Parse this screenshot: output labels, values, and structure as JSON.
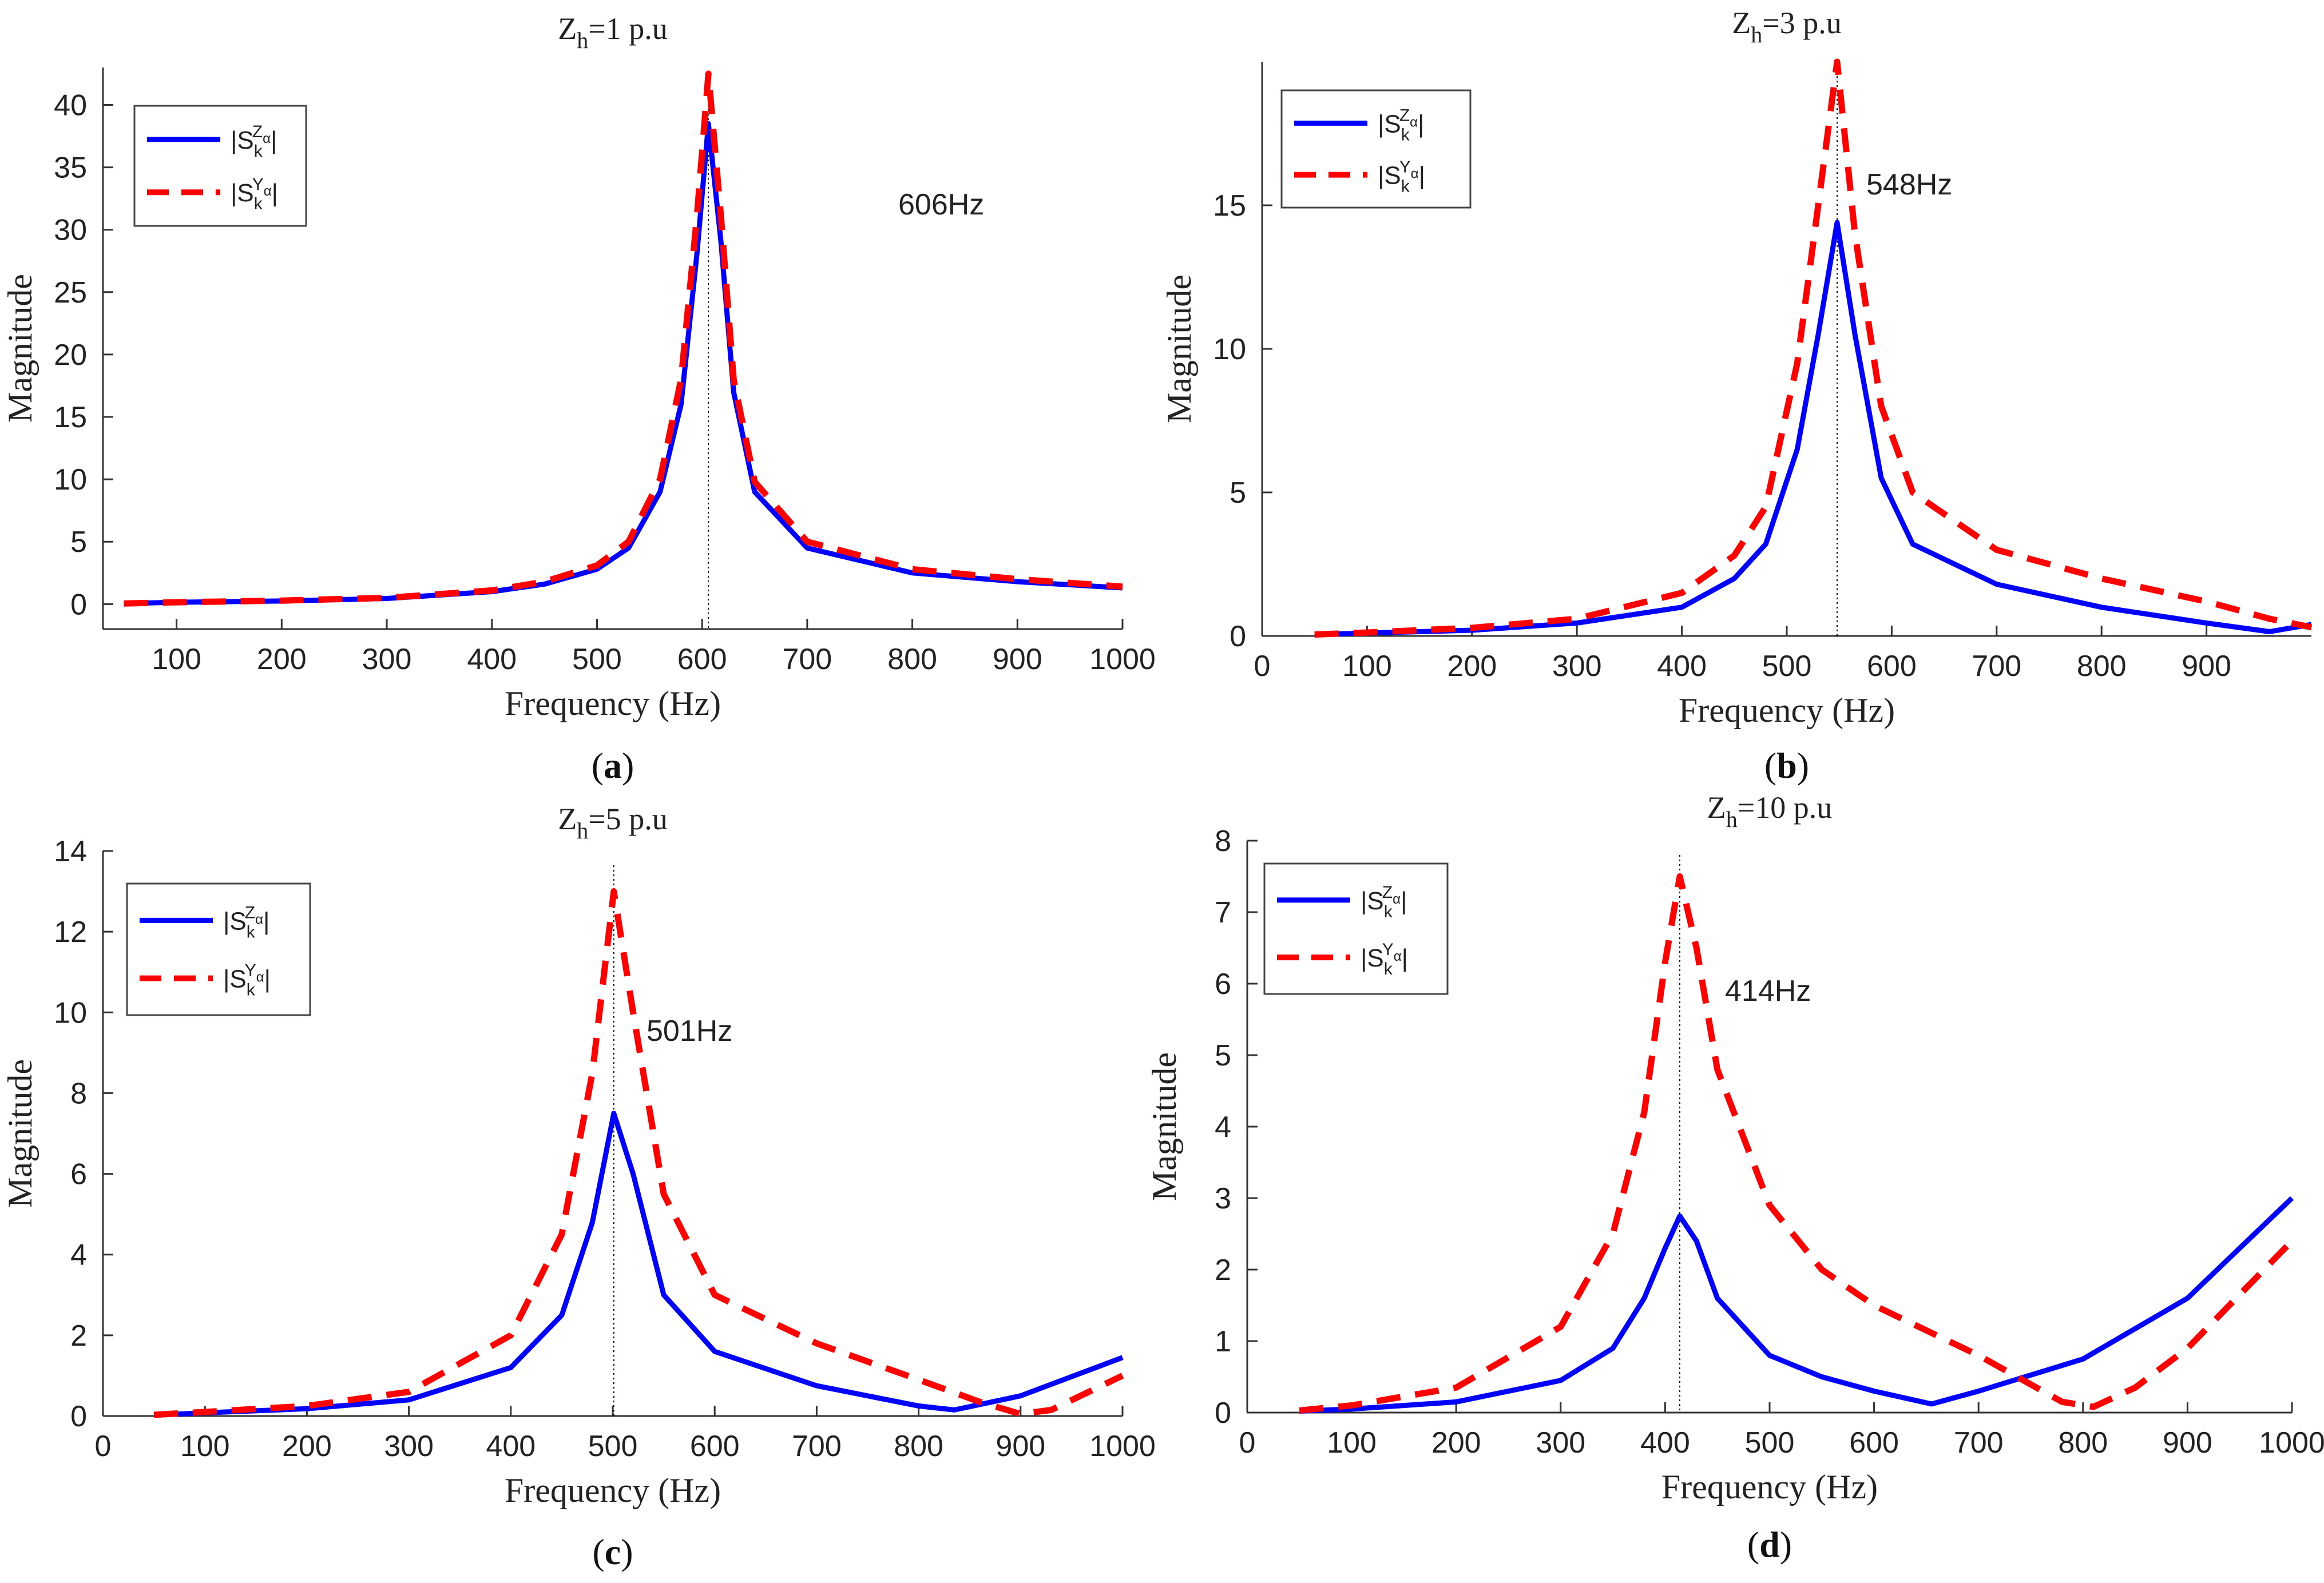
{
  "chart_data": [
    {
      "type": "line",
      "title_main": "Z",
      "title_sub": "h",
      "title_rest": "=1 p.u",
      "xlabel": "Frequency (Hz)",
      "ylabel": "Magnitude",
      "xlim": [
        30,
        1000
      ],
      "ylim": [
        -2,
        43
      ],
      "xticks": [
        100,
        200,
        300,
        400,
        500,
        600,
        700,
        800,
        900,
        1000
      ],
      "yticks": [
        0,
        5,
        10,
        15,
        20,
        25,
        30,
        35,
        40
      ],
      "peak": {
        "freq": 606,
        "label": "606Hz"
      },
      "caption": "a",
      "legend_position": "top-left",
      "series": [
        {
          "name": "|S_k^Z_α|",
          "style": "solid",
          "color": "#0000ff",
          "x": [
            50,
            100,
            200,
            300,
            400,
            450,
            500,
            530,
            560,
            580,
            595,
            606,
            618,
            630,
            650,
            700,
            800,
            900,
            1000
          ],
          "values": [
            0.05,
            0.15,
            0.25,
            0.45,
            1.0,
            1.6,
            2.8,
            4.5,
            9.0,
            16.0,
            28.0,
            38.5,
            29.0,
            17.0,
            9.0,
            4.5,
            2.5,
            1.8,
            1.3
          ]
        },
        {
          "name": "|S_k^Y_α|",
          "style": "dashed",
          "color": "#ff0000",
          "x": [
            50,
            100,
            200,
            300,
            400,
            450,
            500,
            530,
            560,
            580,
            595,
            606,
            618,
            630,
            650,
            700,
            800,
            900,
            1000
          ],
          "values": [
            0.05,
            0.15,
            0.28,
            0.5,
            1.1,
            1.8,
            3.1,
            5.0,
            10.0,
            18.0,
            31.0,
            42.5,
            31.0,
            18.0,
            9.8,
            5.0,
            2.8,
            2.0,
            1.4
          ]
        }
      ]
    },
    {
      "type": "line",
      "title_main": "Z",
      "title_sub": "h",
      "title_rest": "=3 p.u",
      "xlabel": "Frequency (Hz)",
      "ylabel": "Magnitude",
      "xlim": [
        0,
        1000
      ],
      "ylim": [
        0,
        20
      ],
      "xticks": [
        0,
        100,
        200,
        300,
        400,
        500,
        600,
        700,
        800,
        900
      ],
      "yticks": [
        0,
        5,
        10,
        15
      ],
      "peak": {
        "freq": 548,
        "label": "548Hz"
      },
      "caption": "b",
      "legend_position": "top-left",
      "series": [
        {
          "name": "|S_k^Z_α|",
          "style": "solid",
          "color": "#0000ff",
          "x": [
            50,
            100,
            200,
            300,
            400,
            450,
            480,
            510,
            530,
            548,
            565,
            590,
            620,
            700,
            800,
            900,
            960,
            1000
          ],
          "values": [
            0.05,
            0.1,
            0.2,
            0.45,
            1.0,
            2.0,
            3.2,
            6.5,
            10.5,
            14.4,
            10.5,
            5.5,
            3.2,
            1.8,
            1.0,
            0.45,
            0.15,
            0.4
          ]
        },
        {
          "name": "|S_k^Y_α|",
          "style": "dashed",
          "color": "#ff0000",
          "x": [
            50,
            100,
            200,
            300,
            400,
            450,
            480,
            510,
            530,
            548,
            565,
            590,
            620,
            700,
            800,
            900,
            960,
            1000
          ],
          "values": [
            0.05,
            0.12,
            0.28,
            0.6,
            1.5,
            2.8,
            4.5,
            9.5,
            15.0,
            20.0,
            14.0,
            8.0,
            5.0,
            3.0,
            2.0,
            1.2,
            0.6,
            0.3
          ]
        }
      ]
    },
    {
      "type": "line",
      "title_main": "Z",
      "title_sub": "h",
      "title_rest": "=5 p.u",
      "xlabel": "Frequency (Hz)",
      "ylabel": "Magnitude",
      "xlim": [
        0,
        1000
      ],
      "ylim": [
        0,
        14
      ],
      "xticks": [
        0,
        100,
        200,
        300,
        400,
        500,
        600,
        700,
        800,
        900,
        1000
      ],
      "yticks": [
        0,
        2,
        4,
        6,
        8,
        10,
        12,
        14
      ],
      "peak": {
        "freq": 501,
        "label": "501Hz"
      },
      "caption": "c",
      "legend_position": "top-left",
      "series": [
        {
          "name": "|S_k^Z_α|",
          "style": "solid",
          "color": "#0000ff",
          "x": [
            50,
            100,
            200,
            300,
            400,
            450,
            480,
            501,
            520,
            550,
            600,
            700,
            800,
            835,
            900,
            1000
          ],
          "values": [
            0.02,
            0.08,
            0.18,
            0.4,
            1.2,
            2.5,
            4.8,
            7.5,
            6.0,
            3.0,
            1.6,
            0.75,
            0.25,
            0.15,
            0.5,
            1.45
          ]
        },
        {
          "name": "|S_k^Y_α|",
          "style": "dashed",
          "color": "#ff0000",
          "x": [
            50,
            100,
            200,
            300,
            400,
            450,
            480,
            501,
            520,
            550,
            600,
            700,
            800,
            860,
            900,
            930,
            1000
          ],
          "values": [
            0.03,
            0.1,
            0.25,
            0.6,
            2.0,
            4.5,
            8.5,
            13.0,
            10.0,
            5.5,
            3.0,
            1.8,
            0.9,
            0.35,
            0.05,
            0.15,
            1.0
          ]
        }
      ]
    },
    {
      "type": "line",
      "title_main": "Z",
      "title_sub": "h",
      "title_rest": "=10 p.u",
      "xlabel": "Frequency (Hz)",
      "ylabel": "Magnitude",
      "xlim": [
        0,
        1000
      ],
      "ylim": [
        0,
        8
      ],
      "xticks": [
        0,
        100,
        200,
        300,
        400,
        500,
        600,
        700,
        800,
        900,
        1000
      ],
      "yticks": [
        0,
        1,
        2,
        3,
        4,
        5,
        6,
        7,
        8
      ],
      "peak": {
        "freq": 414,
        "label": "414Hz"
      },
      "caption": "d",
      "legend_position": "top-left",
      "series": [
        {
          "name": "|S_k^Z_α|",
          "style": "solid",
          "color": "#0000ff",
          "x": [
            50,
            100,
            200,
            300,
            350,
            380,
            400,
            414,
            430,
            450,
            500,
            550,
            600,
            655,
            700,
            800,
            900,
            1000
          ],
          "values": [
            0.02,
            0.05,
            0.15,
            0.45,
            0.9,
            1.6,
            2.3,
            2.75,
            2.4,
            1.6,
            0.8,
            0.5,
            0.3,
            0.12,
            0.3,
            0.75,
            1.6,
            3.0
          ]
        },
        {
          "name": "|S_k^Y_α|",
          "style": "dashed",
          "color": "#ff0000",
          "x": [
            50,
            100,
            200,
            300,
            350,
            380,
            400,
            414,
            430,
            450,
            500,
            550,
            600,
            700,
            780,
            810,
            850,
            900,
            1000
          ],
          "values": [
            0.03,
            0.1,
            0.35,
            1.2,
            2.5,
            4.2,
            6.3,
            7.5,
            6.5,
            4.8,
            2.9,
            2.0,
            1.5,
            0.8,
            0.15,
            0.08,
            0.35,
            0.9,
            2.4
          ]
        }
      ]
    }
  ],
  "legend": {
    "z_series": {
      "left": "|S",
      "sub": "k",
      "sup": "Z",
      "sup2": "α",
      "right": "|"
    },
    "y_series": {
      "left": "|S",
      "sub": "k",
      "sup": "Y",
      "sup2": "α",
      "right": "|"
    }
  },
  "colors": {
    "solid_series": "#0000ff",
    "dashed_series": "#ff0000",
    "axis": "#333333",
    "guide": "#000000"
  }
}
